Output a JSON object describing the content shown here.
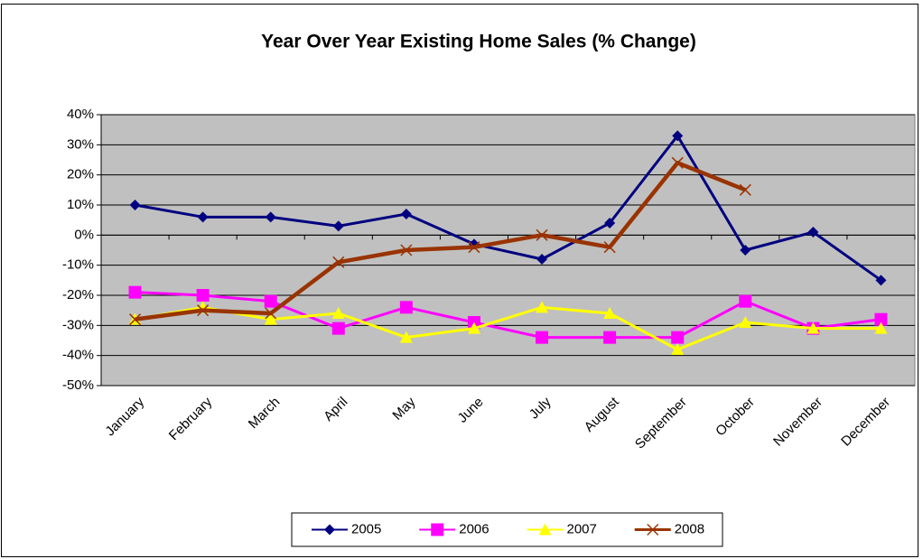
{
  "chart_data": {
    "type": "line",
    "title": "Year Over Year Existing Home Sales (% Change)",
    "categories": [
      "January",
      "February",
      "March",
      "April",
      "May",
      "June",
      "July",
      "August",
      "September",
      "October",
      "November",
      "December"
    ],
    "series": [
      {
        "name": "2005",
        "color": "#000080",
        "marker": "diamond",
        "values": [
          10,
          6,
          6,
          3,
          7,
          -3,
          -8,
          4,
          33,
          -5,
          1,
          -15
        ]
      },
      {
        "name": "2006",
        "color": "#ff00ff",
        "marker": "square",
        "values": [
          -19,
          -20,
          -22,
          -31,
          -24,
          -29,
          -34,
          -34,
          -34,
          -22,
          -31,
          -28
        ]
      },
      {
        "name": "2007",
        "color": "#ffff00",
        "marker": "triangle",
        "values": [
          -28,
          -24,
          -28,
          -26,
          -34,
          -31,
          -24,
          -26,
          -38,
          -29,
          -31,
          -31
        ]
      },
      {
        "name": "2008",
        "color": "#993300",
        "marker": "x",
        "values": [
          -28,
          -25,
          -26,
          -9,
          -5,
          -4,
          0,
          -4,
          24,
          15,
          null,
          null
        ]
      }
    ],
    "ylim": [
      -50,
      40
    ],
    "yticks": [
      {
        "value": -50,
        "label": "-50%"
      },
      {
        "value": -40,
        "label": "-40%"
      },
      {
        "value": -30,
        "label": "-30%"
      },
      {
        "value": -20,
        "label": "-20%"
      },
      {
        "value": -10,
        "label": "-10%"
      },
      {
        "value": 0,
        "label": "0%"
      },
      {
        "value": 10,
        "label": "10%"
      },
      {
        "value": 20,
        "label": "20%"
      },
      {
        "value": 30,
        "label": "30%"
      },
      {
        "value": 40,
        "label": "40%"
      }
    ],
    "grid": true,
    "legend": "bottom",
    "plot_background": "#c0c0c0"
  }
}
